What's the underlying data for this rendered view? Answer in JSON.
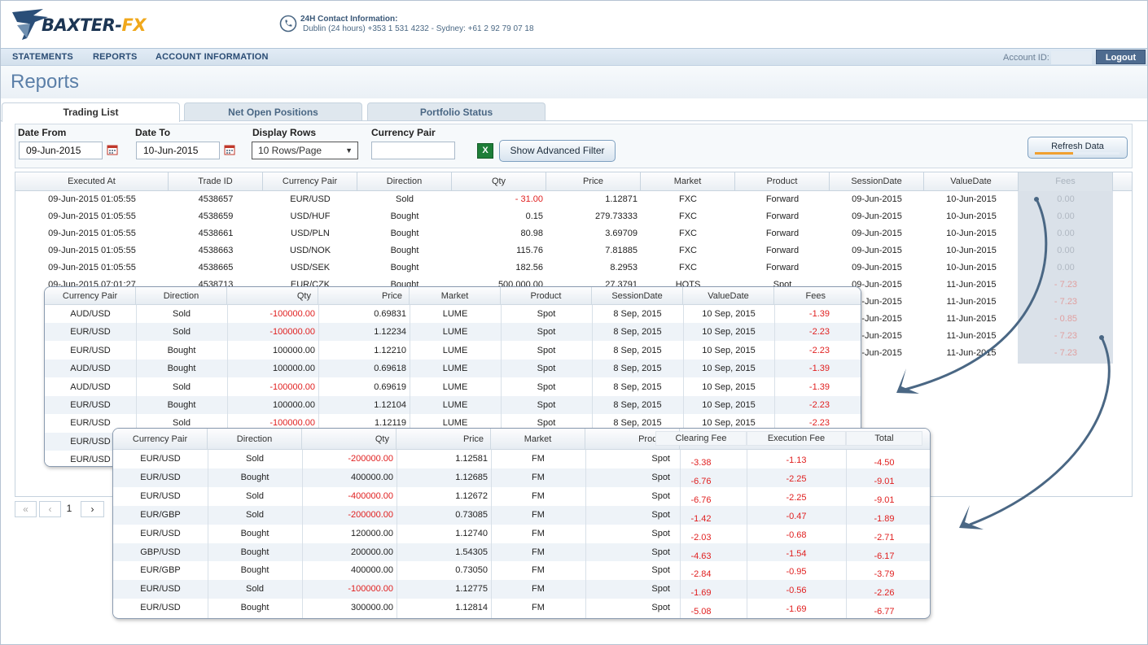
{
  "brand": {
    "name_main": "BAXTER-",
    "name_accent": "FX"
  },
  "contact": {
    "title": "24H Contact Information:",
    "detail": "Dublin (24 hours) +353 1 531 4232 - Sydney: +61 2 92 79 07 18"
  },
  "nav": {
    "items": [
      "STATEMENTS",
      "REPORTS",
      "ACCOUNT INFORMATION"
    ],
    "account_label": "Account ID:",
    "logout_label": "Logout"
  },
  "page": {
    "title": "Reports"
  },
  "tabs": [
    {
      "label": "Trading List",
      "active": true
    },
    {
      "label": "Net Open Positions",
      "active": false
    },
    {
      "label": "Portfolio Status",
      "active": false
    }
  ],
  "filters": {
    "date_from_label": "Date From",
    "date_from": "09-Jun-2015",
    "date_to_label": "Date To",
    "date_to": "10-Jun-2015",
    "rows_label": "Display Rows",
    "rows_value": "10 Rows/Page",
    "pair_label": "Currency Pair",
    "pair_value": "",
    "excel_icon": "X",
    "advanced_label": "Show Advanced Filter",
    "refresh_label": "Refresh Data",
    "refresh_progress": 0.45
  },
  "trades": {
    "columns": [
      "Executed At",
      "Trade ID",
      "Currency Pair",
      "Direction",
      "Qty",
      "Price",
      "Market",
      "Product",
      "SessionDate",
      "ValueDate",
      "Fees"
    ],
    "rows": [
      [
        "09-Jun-2015 01:05:55",
        "4538657",
        "EUR/USD",
        "Sold",
        "- 31.00",
        "1.12871",
        "FXC",
        "Forward",
        "09-Jun-2015",
        "10-Jun-2015",
        "0.00"
      ],
      [
        "09-Jun-2015 01:05:55",
        "4538659",
        "USD/HUF",
        "Bought",
        "0.15",
        "279.73333",
        "FXC",
        "Forward",
        "09-Jun-2015",
        "10-Jun-2015",
        "0.00"
      ],
      [
        "09-Jun-2015 01:05:55",
        "4538661",
        "USD/PLN",
        "Bought",
        "80.98",
        "3.69709",
        "FXC",
        "Forward",
        "09-Jun-2015",
        "10-Jun-2015",
        "0.00"
      ],
      [
        "09-Jun-2015 01:05:55",
        "4538663",
        "USD/NOK",
        "Bought",
        "115.76",
        "7.81885",
        "FXC",
        "Forward",
        "09-Jun-2015",
        "10-Jun-2015",
        "0.00"
      ],
      [
        "09-Jun-2015 01:05:55",
        "4538665",
        "USD/SEK",
        "Bought",
        "182.56",
        "8.2953",
        "FXC",
        "Forward",
        "09-Jun-2015",
        "10-Jun-2015",
        "0.00"
      ],
      [
        "09-Jun-2015 07:01:27",
        "4538713",
        "EUR/CZK",
        "Bought",
        "500,000.00",
        "27.3791",
        "HOTS",
        "Spot",
        "09-Jun-2015",
        "11-Jun-2015",
        "- 7.23"
      ],
      [
        "",
        "",
        "",
        "",
        "",
        "",
        "",
        "",
        "09-Jun-2015",
        "11-Jun-2015",
        "- 7.23"
      ],
      [
        "",
        "",
        "",
        "",
        "",
        "",
        "",
        "",
        "09-Jun-2015",
        "11-Jun-2015",
        "- 0.85"
      ],
      [
        "",
        "",
        "",
        "",
        "",
        "",
        "",
        "",
        "09-Jun-2015",
        "11-Jun-2015",
        "- 7.23"
      ],
      [
        "",
        "",
        "",
        "",
        "",
        "",
        "",
        "",
        "09-Jun-2015",
        "11-Jun-2015",
        "- 7.23"
      ]
    ]
  },
  "pager": {
    "first": "«",
    "prev": "‹",
    "page": "1",
    "next": "›"
  },
  "popup1": {
    "columns": [
      "Currency Pair",
      "Direction",
      "Qty",
      "Price",
      "Market",
      "Product",
      "SessionDate",
      "ValueDate",
      "Fees"
    ],
    "rows": [
      [
        "AUD/USD",
        "Sold",
        "-100000.00",
        "0.69831",
        "LUME",
        "Spot",
        "8 Sep, 2015",
        "10 Sep, 2015",
        "-1.39"
      ],
      [
        "EUR/USD",
        "Sold",
        "-100000.00",
        "1.12234",
        "LUME",
        "Spot",
        "8 Sep, 2015",
        "10 Sep, 2015",
        "-2.23"
      ],
      [
        "EUR/USD",
        "Bought",
        "100000.00",
        "1.12210",
        "LUME",
        "Spot",
        "8 Sep, 2015",
        "10 Sep, 2015",
        "-2.23"
      ],
      [
        "AUD/USD",
        "Bought",
        "100000.00",
        "0.69618",
        "LUME",
        "Spot",
        "8 Sep, 2015",
        "10 Sep, 2015",
        "-1.39"
      ],
      [
        "AUD/USD",
        "Sold",
        "-100000.00",
        "0.69619",
        "LUME",
        "Spot",
        "8 Sep, 2015",
        "10 Sep, 2015",
        "-1.39"
      ],
      [
        "EUR/USD",
        "Bought",
        "100000.00",
        "1.12104",
        "LUME",
        "Spot",
        "8 Sep, 2015",
        "10 Sep, 2015",
        "-2.23"
      ],
      [
        "EUR/USD",
        "Sold",
        "-100000.00",
        "1.12119",
        "LUME",
        "Spot",
        "8 Sep, 2015",
        "10 Sep, 2015",
        "-2.23"
      ],
      [
        "EUR/USD",
        "",
        "",
        "",
        "",
        "",
        "",
        "",
        ""
      ],
      [
        "EUR/USD",
        "",
        "",
        "",
        "",
        "",
        "",
        "",
        ""
      ]
    ]
  },
  "popup2": {
    "columns": [
      "Currency Pair",
      "Direction",
      "Qty",
      "Price",
      "Market",
      "Product",
      "Clearing Fee",
      "Execution Fee",
      "Total"
    ],
    "rows": [
      [
        "EUR/USD",
        "Sold",
        "-200000.00",
        "1.12581",
        "FM",
        "Spot",
        "-3.38",
        "-1.13",
        "-4.50"
      ],
      [
        "EUR/USD",
        "Bought",
        "400000.00",
        "1.12685",
        "FM",
        "Spot",
        "-6.76",
        "-2.25",
        "-9.01"
      ],
      [
        "EUR/USD",
        "Sold",
        "-400000.00",
        "1.12672",
        "FM",
        "Spot",
        "-6.76",
        "-2.25",
        "-9.01"
      ],
      [
        "EUR/GBP",
        "Sold",
        "-200000.00",
        "0.73085",
        "FM",
        "Spot",
        "-1.42",
        "-0.47",
        "-1.89"
      ],
      [
        "EUR/USD",
        "Bought",
        "120000.00",
        "1.12740",
        "FM",
        "Spot",
        "-2.03",
        "-0.68",
        "-2.71"
      ],
      [
        "GBP/USD",
        "Bought",
        "200000.00",
        "1.54305",
        "FM",
        "Spot",
        "-4.63",
        "-1.54",
        "-6.17"
      ],
      [
        "EUR/GBP",
        "Bought",
        "400000.00",
        "0.73050",
        "FM",
        "Spot",
        "-2.84",
        "-0.95",
        "-3.79"
      ],
      [
        "EUR/USD",
        "Sold",
        "-100000.00",
        "1.12775",
        "FM",
        "Spot",
        "-1.69",
        "-0.56",
        "-2.26"
      ],
      [
        "EUR/USD",
        "Bought",
        "300000.00",
        "1.12814",
        "FM",
        "Spot",
        "-5.08",
        "-1.69",
        "-6.77"
      ]
    ]
  },
  "colors": {
    "accent": "#4e6b8f",
    "negative": "#e02020",
    "brand": "#1c3553",
    "brand_accent": "#f0a81c",
    "arrow": "#4a6784"
  }
}
